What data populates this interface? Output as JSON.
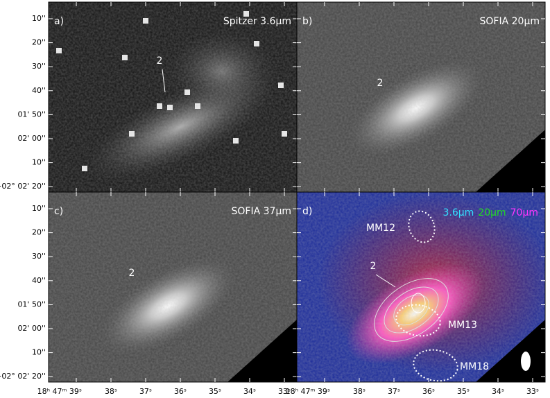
{
  "panels": [
    {
      "label": "a)",
      "title": "Spitzer 3.6μm",
      "source": "2"
    },
    {
      "label": "b)",
      "title": "SOFIA 20μm",
      "source": "2"
    },
    {
      "label": "c)",
      "title": "SOFIA 37μm",
      "source": "2"
    },
    {
      "label": "d)",
      "bands": [
        {
          "text": "3.6μm",
          "color": "#33e0ff"
        },
        {
          "text": "20μm",
          "color": "#22dd22"
        },
        {
          "text": "70μm",
          "color": "#ff33ff"
        }
      ],
      "source": "2",
      "cores": [
        "MM12",
        "MM13",
        "MM18"
      ]
    }
  ],
  "y_ticks": [
    "10''",
    "20''",
    "30''",
    "40''",
    "01' 50''",
    "02' 00''",
    "10''",
    "−02° 02' 20''"
  ],
  "x_ticks": [
    "18ʰ 47ᵐ 39ˢ",
    "38ˢ",
    "37ˢ",
    "36ˢ",
    "35ˢ",
    "34ˢ",
    "33ˢ"
  ]
}
